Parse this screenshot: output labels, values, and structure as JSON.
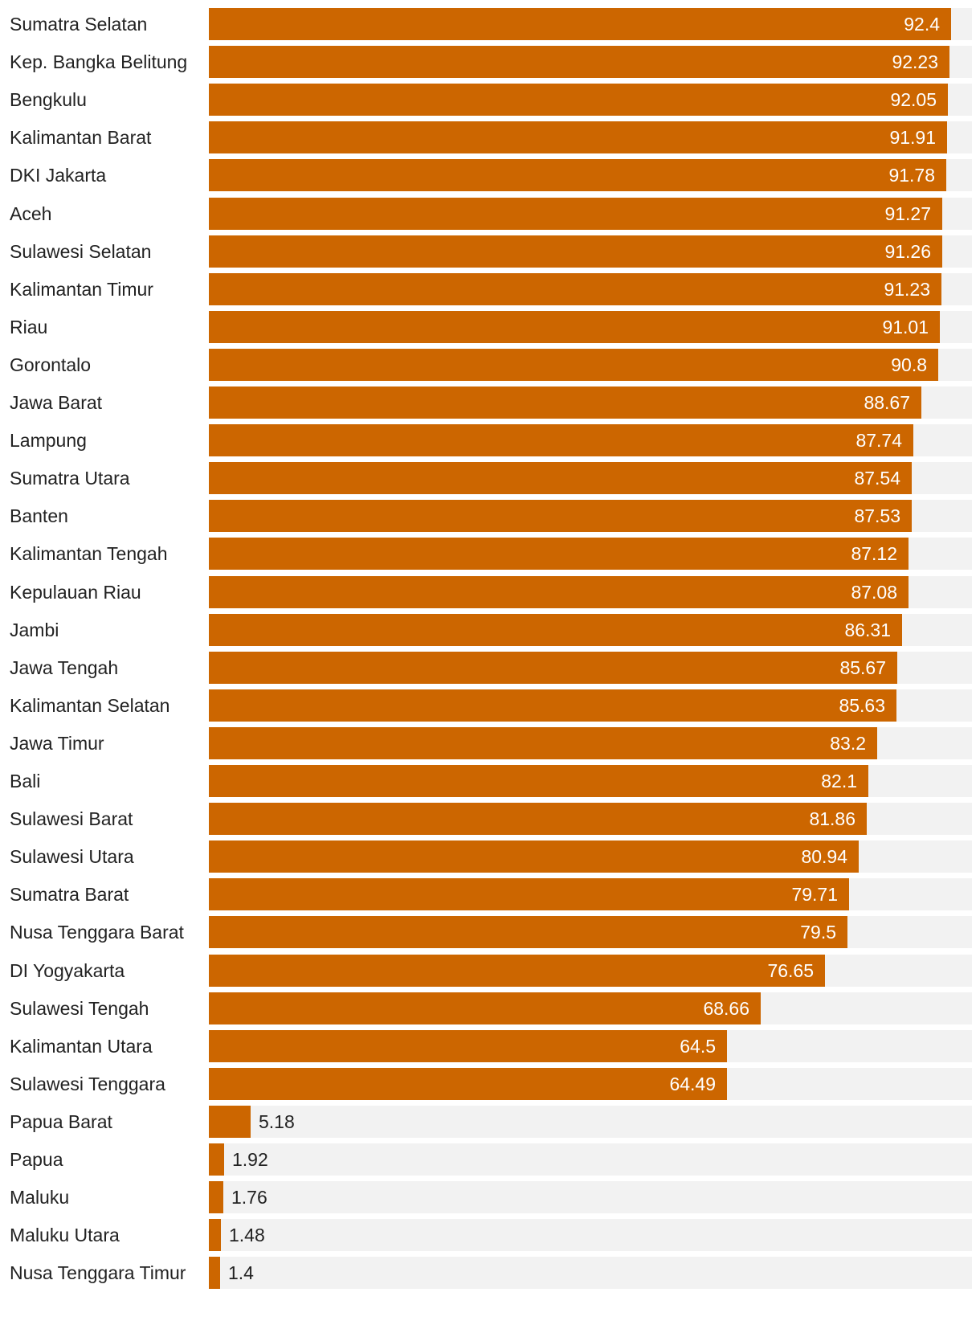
{
  "chart_data": {
    "type": "bar",
    "orientation": "horizontal",
    "title": "",
    "xlabel": "",
    "ylabel": "",
    "xlim": [
      0,
      95
    ],
    "grid": false,
    "colors": {
      "bar": "#cc6600",
      "track": "#f2f2f2",
      "label_text": "#222222",
      "value_inside": "#ffffff",
      "value_outside": "#222222"
    },
    "categories": [
      "Sumatra Selatan",
      "Kep. Bangka Belitung",
      "Bengkulu",
      "Kalimantan Barat",
      "DKI Jakarta",
      "Aceh",
      "Sulawesi Selatan",
      "Kalimantan Timur",
      "Riau",
      "Gorontalo",
      "Jawa Barat",
      "Lampung",
      "Sumatra Utara",
      "Banten",
      "Kalimantan Tengah",
      "Kepulauan Riau",
      "Jambi",
      "Jawa Tengah",
      "Kalimantan Selatan",
      "Jawa Timur",
      "Bali",
      "Sulawesi Barat",
      "Sulawesi Utara",
      "Sumatra Barat",
      "Nusa Tenggara Barat",
      "DI Yogyakarta",
      "Sulawesi Tengah",
      "Kalimantan Utara",
      "Sulawesi Tenggara",
      "Papua Barat",
      "Papua",
      "Maluku",
      "Maluku Utara",
      "Nusa Tenggara Timur"
    ],
    "values": [
      92.4,
      92.23,
      92.05,
      91.91,
      91.78,
      91.27,
      91.26,
      91.23,
      91.01,
      90.8,
      88.67,
      87.74,
      87.54,
      87.53,
      87.12,
      87.08,
      86.31,
      85.67,
      85.63,
      83.2,
      82.1,
      81.86,
      80.94,
      79.71,
      79.5,
      76.65,
      68.66,
      64.5,
      64.49,
      5.18,
      1.92,
      1.76,
      1.48,
      1.4
    ],
    "value_labels": [
      "92.4",
      "92.23",
      "92.05",
      "91.91",
      "91.78",
      "91.27",
      "91.26",
      "91.23",
      "91.01",
      "90.8",
      "88.67",
      "87.74",
      "87.54",
      "87.53",
      "87.12",
      "87.08",
      "86.31",
      "85.67",
      "85.63",
      "83.2",
      "82.1",
      "81.86",
      "80.94",
      "79.71",
      "79.5",
      "76.65",
      "68.66",
      "64.5",
      "64.49",
      "5.18",
      "1.92",
      "1.76",
      "1.48",
      "1.4"
    ]
  }
}
